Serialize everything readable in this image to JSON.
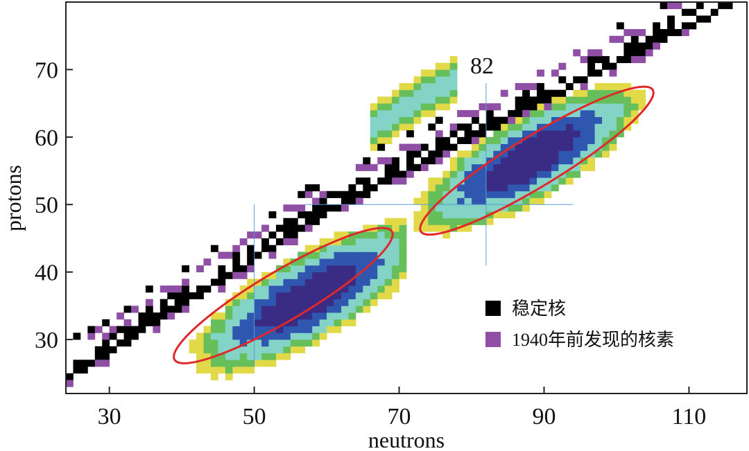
{
  "chart_data": {
    "type": "heatmap",
    "title": "",
    "xlabel": "neutrons",
    "ylabel": "protons",
    "xlim": [
      24,
      118
    ],
    "ylim": [
      22,
      80
    ],
    "xticks": [
      30,
      50,
      70,
      90,
      110
    ],
    "yticks": [
      30,
      40,
      50,
      60,
      70
    ],
    "magic_lines": {
      "neutron_82": {
        "x": 82,
        "y_range": [
          41,
          68
        ]
      },
      "neutron_50": {
        "x": 50,
        "y_range": [
          26,
          50
        ]
      },
      "proton_50": {
        "y": 50,
        "x_range": [
          57,
          94
        ]
      }
    },
    "annotation": {
      "text": "82",
      "x": 82,
      "y": 70
    },
    "fission_regions": [
      {
        "name": "light-fragment-peak",
        "center": [
          58.5,
          36
        ],
        "x_range": [
          39,
          68
        ],
        "y_range": [
          27,
          46
        ]
      },
      {
        "name": "heavy-fragment-peak",
        "center": [
          88.5,
          56.5
        ],
        "x_range": [
          73,
          104
        ],
        "y_range": [
          46,
          67
        ]
      }
    ],
    "legend": [
      {
        "label": "稳定核",
        "color": "#000000"
      },
      {
        "label": "1940年前发现的核素",
        "color": "#8e4fa5"
      }
    ],
    "band_colors": [
      "#e2d949",
      "#66bf5a",
      "#84d3c7",
      "#2f57b0",
      "#3a2b84"
    ]
  }
}
